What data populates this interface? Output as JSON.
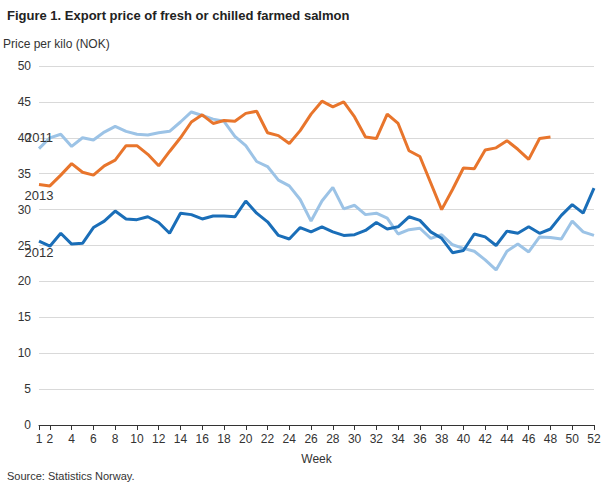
{
  "chart_data": {
    "type": "line",
    "title": "Figure 1. Export price of fresh or chilled farmed salmon",
    "y_label": "Price per kilo (NOK)",
    "x_label": "Week",
    "source": "Source: Statistics Norway.",
    "x": [
      1,
      2,
      3,
      4,
      5,
      6,
      7,
      8,
      9,
      10,
      11,
      12,
      13,
      14,
      15,
      16,
      17,
      18,
      19,
      20,
      21,
      22,
      23,
      24,
      25,
      26,
      27,
      28,
      29,
      30,
      31,
      32,
      33,
      34,
      35,
      36,
      37,
      38,
      39,
      40,
      41,
      42,
      43,
      44,
      45,
      46,
      47,
      48,
      49,
      50,
      51,
      52
    ],
    "xlim": [
      1,
      52
    ],
    "xticks": [
      1,
      2,
      4,
      6,
      8,
      10,
      12,
      14,
      16,
      18,
      20,
      22,
      24,
      26,
      28,
      30,
      32,
      34,
      36,
      38,
      40,
      42,
      44,
      46,
      48,
      50,
      52
    ],
    "ylim": [
      0,
      50
    ],
    "yticks": [
      0,
      5,
      10,
      15,
      20,
      25,
      30,
      35,
      40,
      45,
      50
    ],
    "grid": true,
    "series": [
      {
        "name": "2011",
        "color": "#9cc3e6",
        "values": [
          38.5,
          40,
          40.5,
          38.8,
          40,
          39.7,
          40.8,
          41.6,
          40.9,
          40.5,
          40.4,
          40.7,
          40.9,
          42.2,
          43.6,
          43.1,
          42.6,
          42.3,
          40.2,
          38.9,
          36.7,
          36,
          34.1,
          33.3,
          31.4,
          28.4,
          31.2,
          33.1,
          30.1,
          30.6,
          29.3,
          29.5,
          28.8,
          26.6,
          27.2,
          27.4,
          26,
          26.5,
          25.1,
          24.6,
          24.2,
          23,
          21.6,
          24.2,
          25.2,
          24.1,
          26.2,
          26.1,
          25.9,
          28.4,
          26.9,
          26.4
        ]
      },
      {
        "name": "2012",
        "color": "#1a6eb8",
        "values": [
          25.6,
          24.9,
          26.7,
          25.2,
          25.3,
          27.5,
          28.4,
          29.8,
          28.7,
          28.6,
          29,
          28.2,
          26.7,
          29.5,
          29.3,
          28.7,
          29.1,
          29.1,
          29,
          31.2,
          29.5,
          28.3,
          26.4,
          25.9,
          27.5,
          26.9,
          27.6,
          26.9,
          26.4,
          26.5,
          27.1,
          28.2,
          27.3,
          27.6,
          29,
          28.5,
          26.9,
          26,
          24,
          24.3,
          26.6,
          26.2,
          25,
          27,
          26.7,
          27.6,
          26.7,
          27.3,
          29.2,
          30.7,
          29.5,
          33
        ]
      },
      {
        "name": "2013",
        "color": "#e8752c",
        "values": [
          33.5,
          33.3,
          34.8,
          36.4,
          35.2,
          34.8,
          36.1,
          36.9,
          38.9,
          38.9,
          37.7,
          36.1,
          38.1,
          40,
          42.2,
          43.2,
          42,
          42.4,
          42.3,
          43.4,
          43.7,
          40.7,
          40.3,
          39.2,
          41,
          43.3,
          45.1,
          44.3,
          45,
          42.9,
          40.1,
          39.9,
          43.3,
          42,
          38.2,
          37.4,
          33.7,
          30,
          32.8,
          35.8,
          35.7,
          38.3,
          38.6,
          39.6,
          38.4,
          37,
          39.9,
          40.1,
          null,
          null,
          null,
          null
        ]
      }
    ]
  }
}
